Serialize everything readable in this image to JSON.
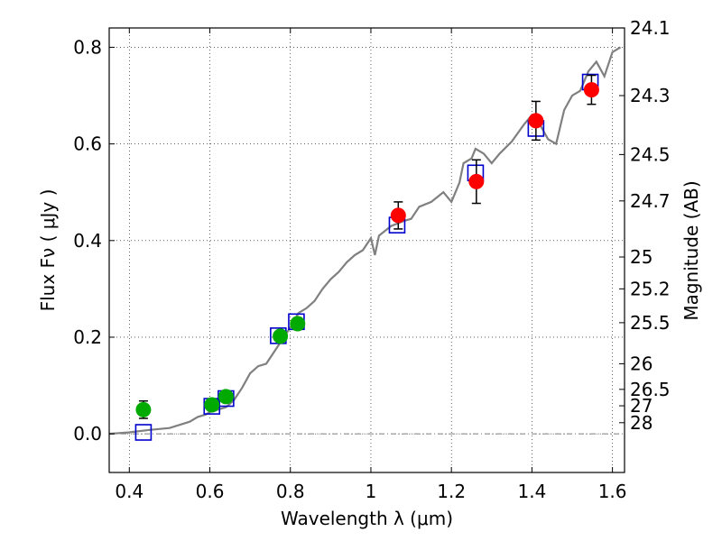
{
  "chart_data": {
    "type": "scatter",
    "xlabel": "Wavelength  λ (μm)",
    "ylabel": "Flux  Fν  ( μJy )",
    "y2label": "Magnitude (AB)",
    "xlim": [
      0.35,
      1.63
    ],
    "ylim": [
      -0.08,
      0.84
    ],
    "grid": true,
    "x_ticks": [
      0.4,
      0.6,
      0.8,
      1.0,
      1.2,
      1.4,
      1.6
    ],
    "x_tick_labels": [
      "0.4",
      "0.6",
      "0.8",
      "1",
      "1.2",
      "1.4",
      "1.6"
    ],
    "y_ticks": [
      0.0,
      0.2,
      0.4,
      0.6,
      0.8
    ],
    "y_tick_labels": [
      "0.0",
      "0.2",
      "0.4",
      "0.6",
      "0.8"
    ],
    "magnitude_ticks": [
      {
        "label": "24.1",
        "flux": 0.84
      },
      {
        "label": "24.3",
        "flux": 0.7
      },
      {
        "label": "24.5",
        "flux": 0.578
      },
      {
        "label": "24.7",
        "flux": 0.482
      },
      {
        "label": "25",
        "flux": 0.366
      },
      {
        "label": "25.2",
        "flux": 0.3
      },
      {
        "label": "25.5",
        "flux": 0.23
      },
      {
        "label": "26",
        "flux": 0.145
      },
      {
        "label": "26.5",
        "flux": 0.092
      },
      {
        "label": "27",
        "flux": 0.058
      },
      {
        "label": "28",
        "flux": 0.023
      }
    ],
    "model_spectrum": {
      "color": "#808080",
      "x": [
        0.35,
        0.4,
        0.45,
        0.5,
        0.55,
        0.57,
        0.59,
        0.6,
        0.62,
        0.64,
        0.66,
        0.68,
        0.7,
        0.72,
        0.74,
        0.76,
        0.78,
        0.8,
        0.82,
        0.84,
        0.86,
        0.88,
        0.9,
        0.92,
        0.94,
        0.96,
        0.98,
        1.0,
        1.01,
        1.02,
        1.05,
        1.08,
        1.1,
        1.12,
        1.15,
        1.18,
        1.2,
        1.22,
        1.23,
        1.25,
        1.26,
        1.28,
        1.3,
        1.32,
        1.35,
        1.38,
        1.4,
        1.42,
        1.44,
        1.46,
        1.48,
        1.5,
        1.52,
        1.54,
        1.56,
        1.58,
        1.6,
        1.62
      ],
      "y": [
        0.0,
        0.003,
        0.008,
        0.012,
        0.025,
        0.035,
        0.04,
        0.045,
        0.05,
        0.055,
        0.07,
        0.095,
        0.125,
        0.14,
        0.145,
        0.17,
        0.195,
        0.22,
        0.25,
        0.26,
        0.275,
        0.3,
        0.32,
        0.335,
        0.355,
        0.37,
        0.38,
        0.405,
        0.37,
        0.41,
        0.43,
        0.44,
        0.445,
        0.47,
        0.48,
        0.5,
        0.48,
        0.52,
        0.56,
        0.57,
        0.59,
        0.58,
        0.56,
        0.58,
        0.605,
        0.64,
        0.66,
        0.64,
        0.61,
        0.6,
        0.67,
        0.7,
        0.71,
        0.75,
        0.77,
        0.74,
        0.79,
        0.8
      ]
    },
    "series": [
      {
        "marker": "square",
        "color": "#0000cc",
        "x": [
          0.435,
          0.605,
          0.64,
          0.77,
          0.815,
          1.065,
          1.26,
          1.41,
          1.545
        ],
        "y": [
          0.003,
          0.057,
          0.073,
          0.203,
          0.232,
          0.432,
          0.54,
          0.632,
          0.728
        ]
      },
      {
        "marker": "circle",
        "color": "#00aa00",
        "x": [
          0.435,
          0.605,
          0.64,
          0.775,
          0.818
        ],
        "y": [
          0.05,
          0.06,
          0.077,
          0.202,
          0.228
        ],
        "err": [
          0.018,
          0.012,
          0.01,
          0.01,
          0.012
        ]
      },
      {
        "marker": "circle",
        "color": "#ff0000",
        "x": [
          1.068,
          1.262,
          1.41,
          1.548
        ],
        "y": [
          0.452,
          0.522,
          0.648,
          0.712
        ],
        "err": [
          0.028,
          0.045,
          0.04,
          0.03
        ]
      }
    ]
  }
}
